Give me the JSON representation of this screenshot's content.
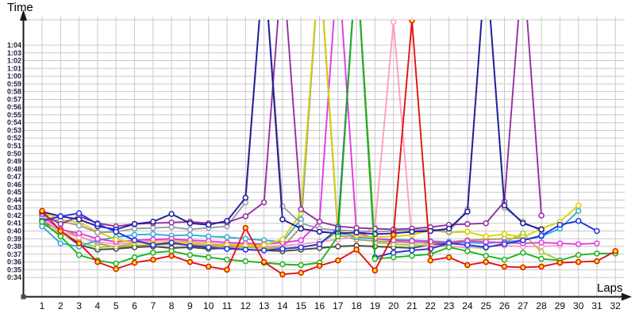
{
  "titles": {
    "y_axis": "Time",
    "x_axis": "Laps"
  },
  "axes": {
    "x_ticks": [
      1,
      2,
      3,
      4,
      5,
      6,
      7,
      8,
      9,
      10,
      11,
      12,
      13,
      14,
      15,
      16,
      17,
      18,
      19,
      20,
      21,
      22,
      23,
      24,
      25,
      26,
      27,
      28,
      29,
      30,
      31,
      32
    ],
    "y_ticks": [
      "0:34",
      "0:35",
      "0:36",
      "0:37",
      "0:38",
      "0:39",
      "0:40",
      "0:41",
      "0:42",
      "0:43",
      "0:44",
      "0:45",
      "0:46",
      "0:47",
      "0:48",
      "0:49",
      "0:50",
      "0:51",
      "0:52",
      "0:53",
      "0:54",
      "0:55",
      "0:56",
      "0:57",
      "0:58",
      "0:59",
      "1:00",
      "1:01",
      "1:02",
      "1:03",
      "1:04"
    ],
    "y_min_seconds": 34,
    "y_max_seconds": 64,
    "grid": true,
    "note": "lap-time spikes (pit stops) are clipped at the top of the plot area"
  },
  "colors": {
    "background": "#ffffff",
    "grid": "#c9c9c9",
    "axis": "#1a1a1a",
    "y_tick_label": "#20203d",
    "x_tick_label": "#0a0a0a"
  },
  "chart_data": {
    "type": "line",
    "xlabel": "Laps",
    "ylabel": "Time",
    "x": [
      1,
      2,
      3,
      4,
      5,
      6,
      7,
      8,
      9,
      10,
      11,
      12,
      13,
      14,
      15,
      16,
      17,
      18,
      19,
      20,
      21,
      22,
      23,
      24,
      25,
      26,
      27,
      28,
      29,
      30,
      31,
      32
    ],
    "y_unit": "lap time m:ss (seconds values below)",
    "series": [
      {
        "name": "khaki",
        "color": "#ab9a58",
        "marker_fill": "#ffffff",
        "spike_laps": [
          16
        ],
        "values": [
          41.0,
          40.3,
          39.3,
          38.4,
          37.9,
          38.1,
          38.2,
          38.3,
          38.2,
          38.1,
          38.0,
          37.9,
          37.8,
          37.9,
          40.5,
          75,
          39.5,
          38.9,
          38.7,
          38.6,
          38.5,
          38.4,
          38.6,
          38.8,
          38.9,
          39.0,
          39.1,
          null,
          null,
          null,
          null,
          null
        ]
      },
      {
        "name": "black",
        "color": "#474747",
        "marker_fill": "#ffffff",
        "spike_laps": [],
        "values": [
          41.5,
          39.9,
          38.2,
          37.6,
          37.7,
          37.9,
          38.0,
          37.8,
          37.9,
          37.7,
          37.8,
          37.6,
          37.5,
          37.4,
          37.6,
          37.8,
          38.0,
          38.1,
          38.0,
          37.9,
          37.8,
          38.2,
          38.4,
          38.6,
          null,
          null,
          null,
          null,
          null,
          null,
          null,
          null
        ]
      },
      {
        "name": "lightgreen",
        "color": "#9ccc3c",
        "marker_fill": "#ffffff",
        "spike_laps": [
          18
        ],
        "values": [
          40.9,
          39.7,
          38.6,
          37.9,
          38.0,
          38.4,
          38.8,
          39.0,
          38.6,
          38.4,
          38.2,
          38.0,
          37.8,
          37.7,
          37.9,
          38.3,
          39.9,
          75,
          38.5,
          38.3,
          38.2,
          38.1,
          38.0,
          37.9,
          37.8,
          38.5,
          39.7,
          37.3,
          36.2,
          null,
          null,
          null
        ]
      },
      {
        "name": "pink",
        "color": "#ff9dc0",
        "marker_fill": "#ffffff",
        "spike_laps": [
          20
        ],
        "values": [
          41.6,
          39.9,
          39.2,
          38.6,
          38.3,
          38.5,
          38.7,
          38.8,
          38.5,
          38.4,
          38.3,
          38.2,
          38.0,
          38.1,
          38.3,
          38.6,
          38.9,
          39.3,
          40.5,
          67.0,
          38.7,
          38.2,
          38.0,
          37.9,
          38.0,
          38.1,
          38.0,
          38.0,
          38.1,
          null,
          null,
          null
        ]
      },
      {
        "name": "cyan",
        "color": "#2fabdd",
        "marker_fill": "#ffffff",
        "spike_laps": [
          16
        ],
        "values": [
          40.6,
          38.4,
          38.0,
          38.8,
          39.2,
          39.5,
          39.6,
          39.4,
          39.5,
          39.3,
          39.2,
          39.0,
          38.8,
          38.6,
          41.5,
          75,
          39.8,
          39.2,
          39.0,
          38.9,
          38.8,
          38.7,
          38.6,
          38.5,
          38.4,
          38.6,
          38.8,
          39.3,
          40.3,
          42.6,
          null,
          null
        ]
      },
      {
        "name": "magenta",
        "color": "#e23ae2",
        "marker_fill": "#ffffff",
        "spike_laps": [
          17
        ],
        "values": [
          41.9,
          40.2,
          39.7,
          39.0,
          38.6,
          38.8,
          38.9,
          39.0,
          38.8,
          38.7,
          38.5,
          38.4,
          38.3,
          38.5,
          38.8,
          41.2,
          75,
          39.9,
          39.0,
          38.8,
          38.7,
          38.6,
          38.5,
          38.7,
          38.6,
          38.5,
          38.4,
          38.5,
          38.4,
          38.3,
          38.4,
          null
        ]
      },
      {
        "name": "yellow",
        "color": "#ddd000",
        "marker_fill": "#ffffff",
        "spike_laps": [
          16
        ],
        "values": [
          42.4,
          41.5,
          41.1,
          39.9,
          38.9,
          38.5,
          38.4,
          38.6,
          38.4,
          38.3,
          38.2,
          38.1,
          38.2,
          38.9,
          42.3,
          75,
          40.0,
          39.4,
          39.2,
          39.3,
          39.5,
          40.1,
          39.8,
          39.9,
          39.3,
          39.6,
          39.2,
          40.3,
          41.2,
          43.3,
          null,
          null
        ]
      },
      {
        "name": "gray",
        "color": "#9c9ca4",
        "marker_fill": "#ffffff",
        "spike_laps": [
          13,
          25
        ],
        "values": [
          41.7,
          41.3,
          40.7,
          39.8,
          39.9,
          40.3,
          40.4,
          40.5,
          40.2,
          40.4,
          40.6,
          43.7,
          75,
          43.2,
          41.0,
          40.3,
          40.1,
          40.0,
          39.9,
          40.0,
          40.1,
          40.2,
          39.9,
          42.8,
          75,
          43.0,
          41.2,
          40.0,
          null,
          null,
          null,
          null
        ]
      },
      {
        "name": "purple",
        "color": "#93309f",
        "marker_fill": "#ffffff",
        "spike_laps": [
          14,
          27
        ],
        "values": [
          42.2,
          40.9,
          41.9,
          41.0,
          40.6,
          40.9,
          41.0,
          41.1,
          41.2,
          41.0,
          41.1,
          41.9,
          43.7,
          75,
          42.8,
          41.2,
          40.6,
          40.4,
          40.3,
          40.2,
          40.3,
          40.5,
          40.8,
          40.9,
          41.0,
          43.8,
          75,
          42.0,
          null,
          null,
          null,
          null
        ]
      },
      {
        "name": "navy",
        "color": "#1d1d99",
        "marker_fill": "#ffffff",
        "spike_laps": [
          13,
          25
        ],
        "values": [
          42.5,
          41.9,
          41.5,
          40.6,
          40.2,
          40.9,
          41.2,
          42.2,
          41.0,
          40.8,
          41.3,
          44.3,
          75,
          41.5,
          40.3,
          39.9,
          39.7,
          39.8,
          39.6,
          39.7,
          39.9,
          40.0,
          40.3,
          42.5,
          75,
          43.3,
          41.0,
          40.2,
          null,
          null,
          null,
          null
        ]
      },
      {
        "name": "blue",
        "color": "#2531e0",
        "marker_fill": "#ffffff",
        "spike_laps": [
          18
        ],
        "values": [
          41.3,
          41.9,
          42.3,
          40.9,
          39.9,
          38.8,
          38.2,
          38.5,
          38.1,
          37.9,
          37.7,
          37.6,
          37.5,
          37.7,
          37.9,
          38.3,
          40.3,
          75,
          36.6,
          37.2,
          37.5,
          37.7,
          38.4,
          38.2,
          37.9,
          38.3,
          38.8,
          39.4,
          40.8,
          41.3,
          40.0,
          null
        ]
      },
      {
        "name": "green",
        "color": "#1fb31f",
        "marker_fill": "#ffffff",
        "spike_laps": [
          18
        ],
        "values": [
          41.2,
          39.3,
          36.9,
          36.2,
          35.8,
          36.6,
          37.2,
          37.4,
          36.9,
          36.6,
          36.3,
          36.1,
          35.9,
          35.7,
          35.6,
          35.9,
          39.3,
          75,
          36.4,
          36.6,
          36.8,
          37.0,
          37.9,
          37.4,
          36.8,
          36.3,
          37.2,
          36.4,
          36.2,
          36.9,
          37.1,
          37.1
        ]
      },
      {
        "name": "red",
        "color": "#e21212",
        "marker_fill": "#ffdf00",
        "spike_laps": [
          21
        ],
        "values": [
          42.6,
          40.0,
          38.4,
          36.0,
          35.1,
          35.9,
          36.3,
          36.8,
          36.0,
          35.4,
          35.0,
          40.4,
          36.0,
          34.4,
          34.6,
          35.5,
          36.2,
          37.6,
          34.9,
          39.5,
          67.2,
          36.2,
          36.6,
          35.6,
          36.0,
          35.4,
          35.3,
          35.4,
          35.9,
          36.0,
          36.1,
          37.4
        ]
      }
    ]
  }
}
